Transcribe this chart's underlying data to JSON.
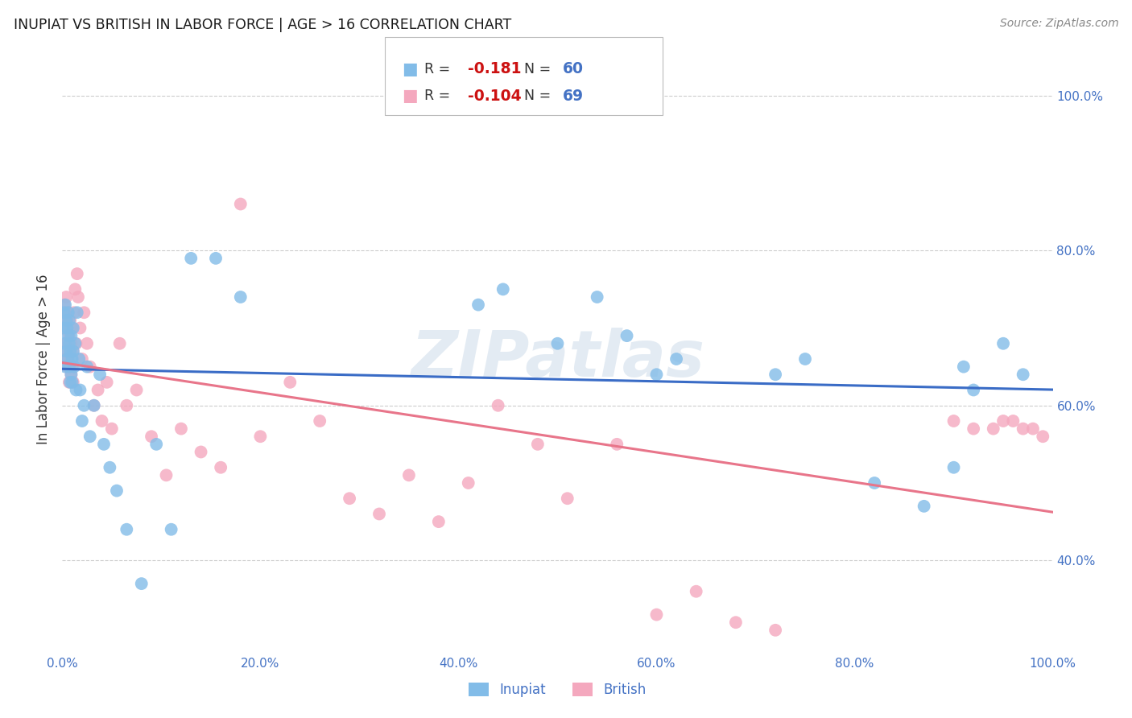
{
  "title": "INUPIAT VS BRITISH IN LABOR FORCE | AGE > 16 CORRELATION CHART",
  "source": "Source: ZipAtlas.com",
  "ylabel_label": "In Labor Force | Age > 16",
  "watermark": "ZIPatlas",
  "legend_blue_rval": "-0.181",
  "legend_blue_nval": "60",
  "legend_pink_rval": "-0.104",
  "legend_pink_nval": "69",
  "blue_color": "#82bce8",
  "pink_color": "#f4a8be",
  "blue_line_color": "#3a6cc6",
  "pink_line_color": "#e8758a",
  "axis_color": "#4472c4",
  "rval_color": "#cc1111",
  "nval_color": "#4472c4",
  "text_color": "#333333",
  "bg_color": "#ffffff",
  "grid_color": "#cccccc",
  "source_color": "#888888",
  "xlim": [
    0.0,
    1.0
  ],
  "ylim": [
    0.28,
    1.04
  ],
  "xticks": [
    0.0,
    0.2,
    0.4,
    0.6,
    0.8,
    1.0
  ],
  "xticklabels": [
    "0.0%",
    "20.0%",
    "40.0%",
    "60.0%",
    "80.0%",
    "100.0%"
  ],
  "yticks_right": [
    0.4,
    0.6,
    0.8,
    1.0
  ],
  "yticklabels_right": [
    "40.0%",
    "60.0%",
    "80.0%",
    "100.0%"
  ],
  "inupiat_x": [
    0.001,
    0.002,
    0.002,
    0.003,
    0.003,
    0.004,
    0.004,
    0.005,
    0.005,
    0.006,
    0.006,
    0.007,
    0.007,
    0.007,
    0.008,
    0.008,
    0.009,
    0.009,
    0.01,
    0.01,
    0.011,
    0.011,
    0.012,
    0.013,
    0.014,
    0.015,
    0.017,
    0.018,
    0.02,
    0.022,
    0.025,
    0.028,
    0.032,
    0.038,
    0.042,
    0.048,
    0.055,
    0.065,
    0.08,
    0.095,
    0.11,
    0.13,
    0.155,
    0.18,
    0.42,
    0.445,
    0.5,
    0.54,
    0.57,
    0.6,
    0.62,
    0.72,
    0.75,
    0.82,
    0.87,
    0.9,
    0.91,
    0.92,
    0.95,
    0.97
  ],
  "inupiat_y": [
    0.7,
    0.72,
    0.68,
    0.73,
    0.65,
    0.71,
    0.67,
    0.66,
    0.7,
    0.69,
    0.72,
    0.65,
    0.68,
    0.71,
    0.63,
    0.67,
    0.64,
    0.69,
    0.66,
    0.63,
    0.7,
    0.67,
    0.65,
    0.68,
    0.62,
    0.72,
    0.66,
    0.62,
    0.58,
    0.6,
    0.65,
    0.56,
    0.6,
    0.64,
    0.55,
    0.52,
    0.49,
    0.44,
    0.37,
    0.55,
    0.44,
    0.79,
    0.79,
    0.74,
    0.73,
    0.75,
    0.68,
    0.74,
    0.69,
    0.64,
    0.66,
    0.64,
    0.66,
    0.5,
    0.47,
    0.52,
    0.65,
    0.62,
    0.68,
    0.64
  ],
  "british_x": [
    0.001,
    0.002,
    0.002,
    0.003,
    0.003,
    0.004,
    0.004,
    0.005,
    0.005,
    0.006,
    0.006,
    0.007,
    0.007,
    0.008,
    0.008,
    0.009,
    0.009,
    0.01,
    0.01,
    0.011,
    0.011,
    0.012,
    0.013,
    0.014,
    0.015,
    0.016,
    0.018,
    0.02,
    0.022,
    0.025,
    0.028,
    0.032,
    0.036,
    0.04,
    0.045,
    0.05,
    0.058,
    0.065,
    0.075,
    0.09,
    0.105,
    0.12,
    0.14,
    0.16,
    0.18,
    0.2,
    0.23,
    0.26,
    0.29,
    0.32,
    0.35,
    0.38,
    0.41,
    0.44,
    0.48,
    0.51,
    0.56,
    0.6,
    0.64,
    0.68,
    0.72,
    0.9,
    0.92,
    0.94,
    0.95,
    0.96,
    0.97,
    0.98,
    0.99
  ],
  "british_y": [
    0.7,
    0.73,
    0.67,
    0.72,
    0.66,
    0.74,
    0.68,
    0.71,
    0.65,
    0.72,
    0.66,
    0.69,
    0.63,
    0.67,
    0.71,
    0.64,
    0.68,
    0.65,
    0.7,
    0.63,
    0.67,
    0.72,
    0.75,
    0.68,
    0.77,
    0.74,
    0.7,
    0.66,
    0.72,
    0.68,
    0.65,
    0.6,
    0.62,
    0.58,
    0.63,
    0.57,
    0.68,
    0.6,
    0.62,
    0.56,
    0.51,
    0.57,
    0.54,
    0.52,
    0.86,
    0.56,
    0.63,
    0.58,
    0.48,
    0.46,
    0.51,
    0.45,
    0.5,
    0.6,
    0.55,
    0.48,
    0.55,
    0.33,
    0.36,
    0.32,
    0.31,
    0.58,
    0.57,
    0.57,
    0.58,
    0.58,
    0.57,
    0.57,
    0.56
  ]
}
